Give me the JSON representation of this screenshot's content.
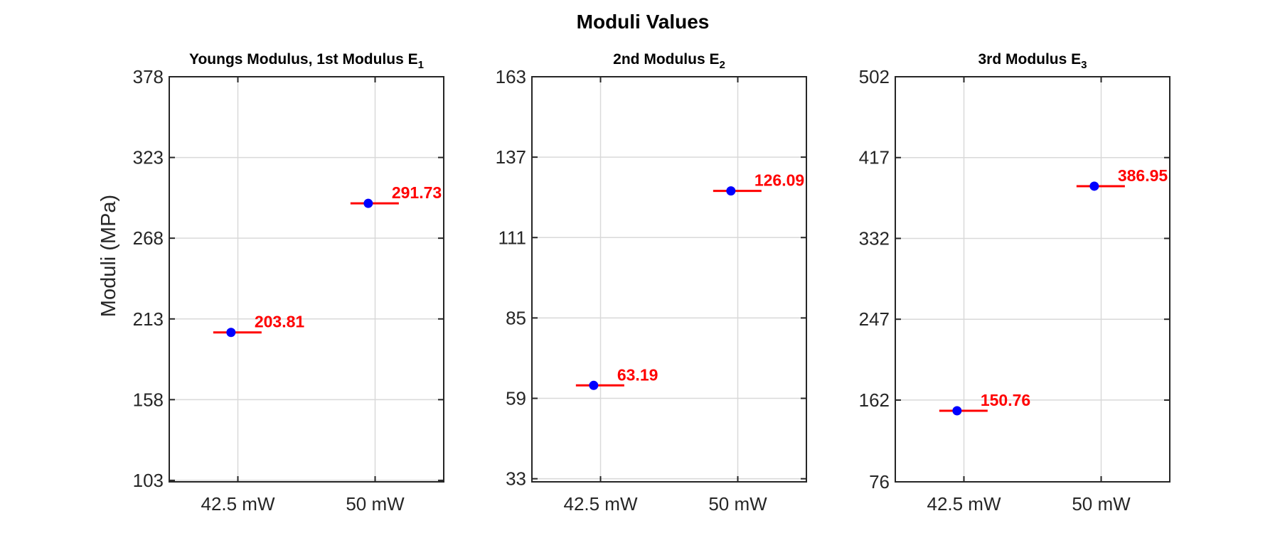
{
  "figure": {
    "title": "Moduli Values",
    "ylabel": "Moduli (MPa)"
  },
  "colors": {
    "point": "#0000ff",
    "errorbar": "#ff0000",
    "label": "#ff0000",
    "grid": "#d9d9d9",
    "axis": "#262626"
  },
  "chart_data": [
    {
      "type": "scatter",
      "title": "Youngs Modulus, 1st Modulus E",
      "title_sub": "1",
      "categories": [
        "42.5 mW",
        "50 mW"
      ],
      "values": [
        203.81,
        291.73
      ],
      "labels": [
        "203.81",
        "291.73"
      ],
      "yticks": [
        103,
        158,
        213,
        268,
        323,
        378
      ],
      "ytick_labels": [
        "103",
        "158",
        "213",
        "268",
        "323",
        "378"
      ],
      "ylim": [
        102,
        378
      ],
      "xlim": [
        0.5,
        2.5
      ],
      "grid": true
    },
    {
      "type": "scatter",
      "title": "2nd Modulus E",
      "title_sub": "2",
      "categories": [
        "42.5 mW",
        "50 mW"
      ],
      "values": [
        63.19,
        126.09
      ],
      "labels": [
        "63.19",
        "126.09"
      ],
      "yticks": [
        33,
        59,
        85,
        111,
        137,
        163
      ],
      "ytick_labels": [
        "33",
        "59",
        "85",
        "111",
        "137",
        "163"
      ],
      "ylim": [
        32,
        163
      ],
      "xlim": [
        0.5,
        2.5
      ],
      "grid": true
    },
    {
      "type": "scatter",
      "title": "3rd Modulus E",
      "title_sub": "3",
      "categories": [
        "42.5 mW",
        "50 mW"
      ],
      "values": [
        150.76,
        386.95
      ],
      "labels": [
        "150.76",
        "386.95"
      ],
      "yticks": [
        76,
        162,
        247,
        332,
        417,
        502
      ],
      "ytick_labels": [
        "76",
        "162",
        "247",
        "332",
        "417",
        "502"
      ],
      "ylim": [
        76,
        502
      ],
      "xlim": [
        0.5,
        2.5
      ],
      "grid": true
    }
  ]
}
